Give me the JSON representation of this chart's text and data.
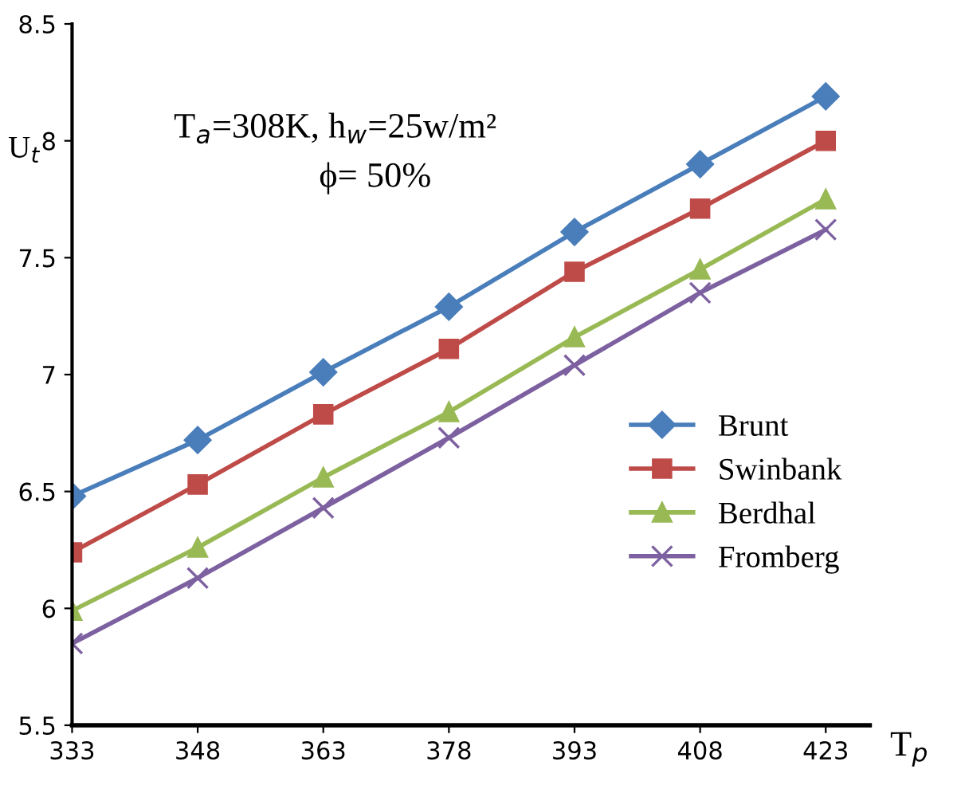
{
  "chart_data": {
    "type": "line",
    "xlabel": "T$_{p}$",
    "ylabel": "U$_{t}$",
    "annotations": [
      "T$_{a}$=308K, h$_{w}$=25w/m²",
      "ϕ= 50%"
    ],
    "categories": [
      "333",
      "348",
      "363",
      "378",
      "393",
      "408",
      "423"
    ],
    "series": [
      {
        "name": "Brunt",
        "color": "#4a7ebb",
        "marker": "diamond",
        "values": [
          6.48,
          6.72,
          7.01,
          7.29,
          7.61,
          7.9,
          8.19
        ]
      },
      {
        "name": "Swinbank",
        "color": "#be4b48",
        "marker": "square",
        "values": [
          6.24,
          6.53,
          6.83,
          7.11,
          7.44,
          7.71,
          8.0
        ]
      },
      {
        "name": "Berdhal",
        "color": "#98b954",
        "marker": "triangle",
        "values": [
          5.99,
          6.26,
          6.56,
          6.84,
          7.16,
          7.45,
          7.75
        ]
      },
      {
        "name": "Fromberg",
        "color": "#7d60a0",
        "marker": "cross",
        "values": [
          5.85,
          6.13,
          6.43,
          6.73,
          7.04,
          7.35,
          7.62
        ]
      }
    ],
    "ylim": [
      5.5,
      8.5
    ],
    "yticks": [
      5.5,
      6,
      6.5,
      7,
      7.5,
      8,
      8.5
    ],
    "grid": false,
    "legend": "right"
  }
}
